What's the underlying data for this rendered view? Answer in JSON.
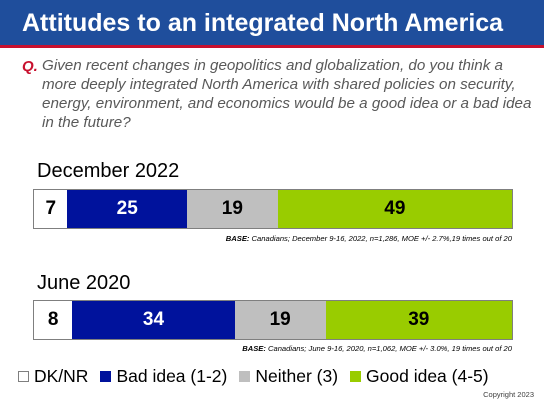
{
  "header": {
    "title": "Attitudes to an integrated North America"
  },
  "question": {
    "label": "Q.",
    "text": "Given recent changes in geopolitics and globalization, do you think a more deeply integrated North America with shared policies on security, energy, environment, and economics would be a good idea or a bad idea in the future?"
  },
  "colors": {
    "header_bg": "#1f4e9c",
    "header_rule": "#c8102e",
    "dk_nr": "#ffffff",
    "bad_idea": "#00129c",
    "neither": "#bfbfbf",
    "good_idea": "#99cc00"
  },
  "chart_data": {
    "type": "bar",
    "stacked": true,
    "orientation": "horizontal",
    "categories": [
      "December 2022",
      "June 2020"
    ],
    "series": [
      {
        "name": "DK/NR",
        "values": [
          7,
          8
        ],
        "color": "#ffffff",
        "text_color": "#000000"
      },
      {
        "name": "Bad idea (1-2)",
        "values": [
          25,
          34
        ],
        "color": "#00129c",
        "text_color": "#ffffff"
      },
      {
        "name": "Neither (3)",
        "values": [
          19,
          19
        ],
        "color": "#bfbfbf",
        "text_color": "#000000"
      },
      {
        "name": "Good idea (4-5)",
        "values": [
          49,
          39
        ],
        "color": "#99cc00",
        "text_color": "#000000"
      }
    ],
    "panels": [
      {
        "title": "December 2022",
        "base_label": "BASE:",
        "base_text": "Canadians; December 9-16, 2022, n=1,286, MOE +/- 2.7%,19 times out of 20"
      },
      {
        "title": "June 2020",
        "base_label": "BASE:",
        "base_text": "Canadians; June 9-16, 2020, n=1,062, MOE +/- 3.0%, 19 times out of 20"
      }
    ],
    "legend_position": "bottom"
  },
  "copyright": "Copyright 2023"
}
